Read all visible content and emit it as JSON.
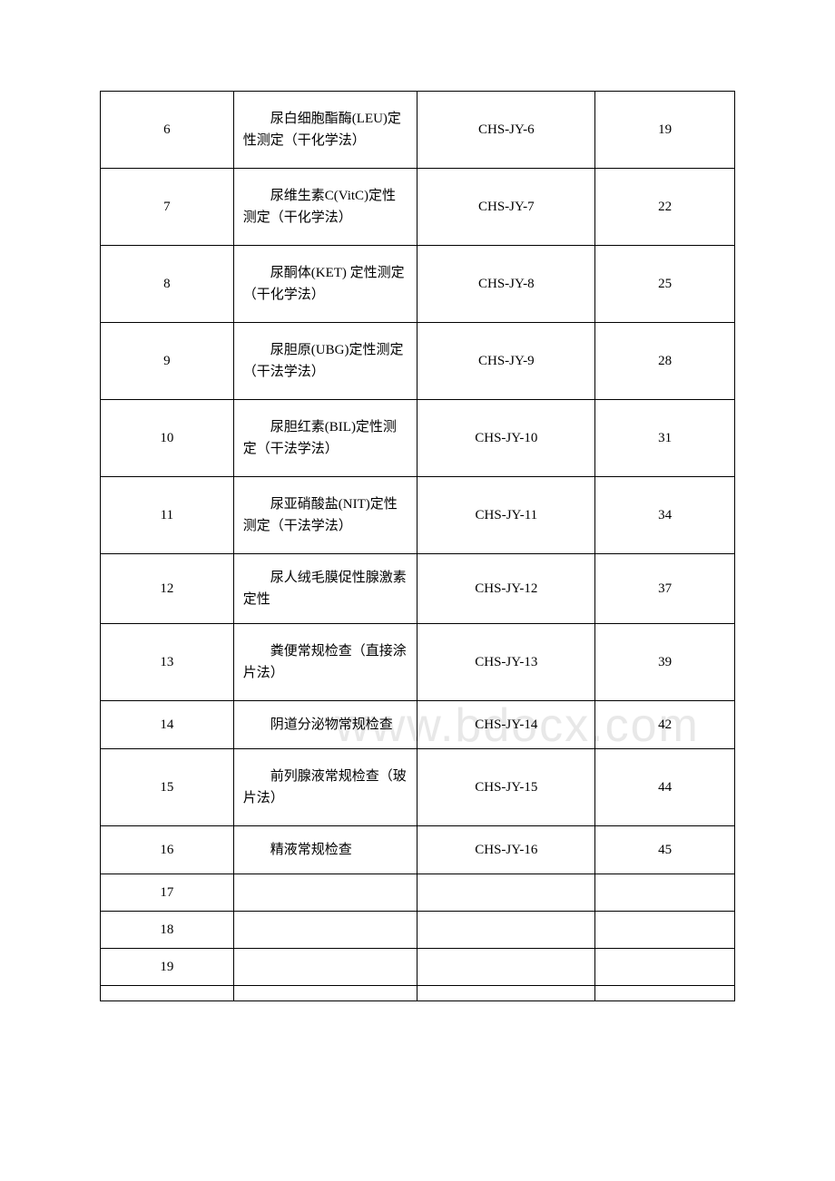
{
  "watermark": "www.bdocx.com",
  "table": {
    "rows": [
      {
        "num": "6",
        "name": "尿白细胞酯酶(LEU)定性测定（干化学法）",
        "code": "CHS-JY-6",
        "page": "19",
        "rowClass": "tall-row"
      },
      {
        "num": "7",
        "name": "尿维生素C(VitC)定性测定（干化学法）",
        "code": "CHS-JY-7",
        "page": "22",
        "rowClass": "tall-row"
      },
      {
        "num": "8",
        "name": "尿酮体(KET) 定性测定（干化学法）",
        "code": "CHS-JY-8",
        "page": "25",
        "rowClass": "tall-row"
      },
      {
        "num": "9",
        "name": "尿胆原(UBG)定性测定（干法学法）",
        "code": "CHS-JY-9",
        "page": "28",
        "rowClass": "tall-row"
      },
      {
        "num": "10",
        "name": "尿胆红素(BIL)定性测定（干法学法）",
        "code": "CHS-JY-10",
        "page": "31",
        "rowClass": "tall-row"
      },
      {
        "num": "11",
        "name": "尿亚硝酸盐(NIT)定性测定（干法学法）",
        "code": "CHS-JY-11",
        "page": "34",
        "rowClass": "tall-row"
      },
      {
        "num": "12",
        "name": "尿人绒毛膜促性腺激素定性",
        "code": "CHS-JY-12",
        "page": "37",
        "rowClass": "med-row"
      },
      {
        "num": "13",
        "name": "粪便常规检查（直接涂片法）",
        "code": "CHS-JY-13",
        "page": "39",
        "rowClass": "tall-row"
      },
      {
        "num": "14",
        "name": "阴道分泌物常规检查",
        "code": "CHS-JY-14",
        "page": "42",
        "rowClass": "med-row"
      },
      {
        "num": "15",
        "name": "前列腺液常规检查（玻片法）",
        "code": "CHS-JY-15",
        "page": "44",
        "rowClass": "tall-row"
      },
      {
        "num": "16",
        "name": "精液常规检查",
        "code": "CHS-JY-16",
        "page": "45",
        "rowClass": "med-row"
      },
      {
        "num": "17",
        "name": "",
        "code": "",
        "page": "",
        "rowClass": "short-row"
      },
      {
        "num": "18",
        "name": "",
        "code": "",
        "page": "",
        "rowClass": "short-row"
      },
      {
        "num": "19",
        "name": "",
        "code": "",
        "page": "",
        "rowClass": "short-row"
      },
      {
        "num": "",
        "name": "",
        "code": "",
        "page": "",
        "rowClass": "short-row"
      }
    ]
  }
}
